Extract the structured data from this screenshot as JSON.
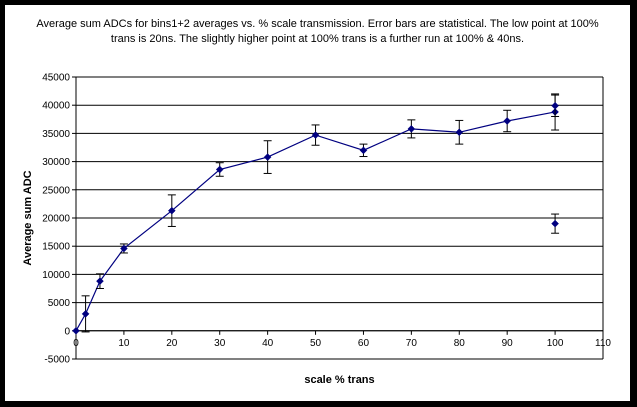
{
  "chart_data": {
    "type": "scatter",
    "title": "Average sum ADCs for bins1+2 averages vs. % scale transmission. Error bars are statistical. The low point at 100% trans is 20ns. The slightly higher point at 100% trans is a further run at 100% & 40ns.",
    "xlabel": "scale % trans",
    "ylabel": "Average sum ADC",
    "xlim": [
      0,
      110
    ],
    "ylim": [
      -5000,
      45000
    ],
    "x_ticks": [
      0,
      10,
      20,
      30,
      40,
      50,
      60,
      70,
      80,
      90,
      100,
      110
    ],
    "y_ticks": [
      -5000,
      0,
      5000,
      10000,
      15000,
      20000,
      25000,
      30000,
      35000,
      40000,
      45000
    ],
    "grid": "horizontal",
    "legend": "none",
    "colors": {
      "series": "#000080",
      "marker": "#000080",
      "errorbar": "#000000",
      "grid": "#000000",
      "background": "#ffffff",
      "border": "#000000"
    },
    "series": [
      {
        "style": "line+markers",
        "points": [
          {
            "x": 0,
            "y": 0,
            "err": 0
          },
          {
            "x": 2,
            "y": 3000,
            "err": 3200
          },
          {
            "x": 5,
            "y": 8800,
            "err": 1300
          },
          {
            "x": 10,
            "y": 14600,
            "err": 800
          },
          {
            "x": 20,
            "y": 21300,
            "err": 2800
          },
          {
            "x": 30,
            "y": 28600,
            "err": 1200
          },
          {
            "x": 40,
            "y": 30800,
            "err": 2900
          },
          {
            "x": 50,
            "y": 34700,
            "err": 1800
          },
          {
            "x": 60,
            "y": 32000,
            "err": 1100
          },
          {
            "x": 70,
            "y": 35800,
            "err": 1600
          },
          {
            "x": 80,
            "y": 35200,
            "err": 2100
          },
          {
            "x": 90,
            "y": 37200,
            "err": 1900
          },
          {
            "x": 100,
            "y": 38800,
            "err": 3200
          }
        ]
      },
      {
        "style": "markers",
        "points": [
          {
            "x": 100,
            "y": 39900,
            "err": 1900
          },
          {
            "x": 100,
            "y": 19000,
            "err": 1700
          }
        ]
      }
    ]
  }
}
